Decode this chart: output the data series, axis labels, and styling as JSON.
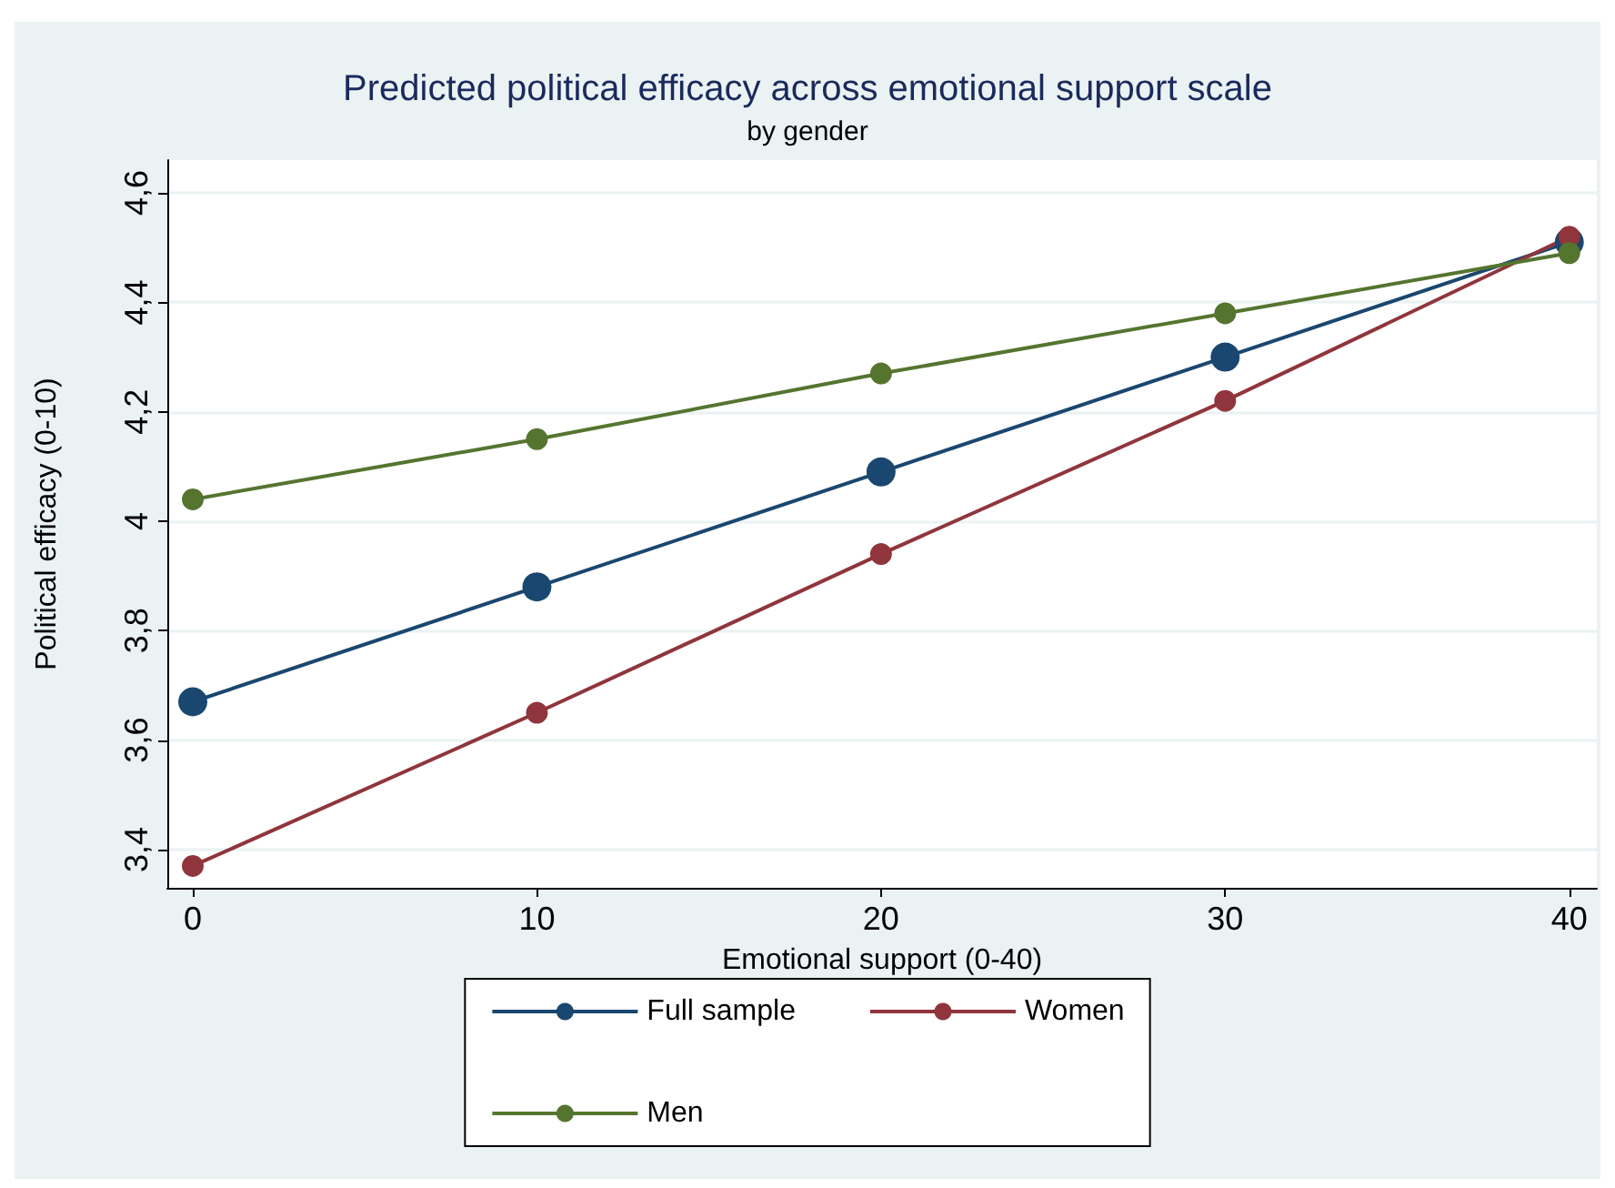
{
  "chart_data": {
    "type": "line",
    "title": "Predicted political efficacy across emotional support scale",
    "subtitle": "by gender",
    "xlabel": "Emotional support (0-40)",
    "ylabel": "Political efficacy (0-10)",
    "x": [
      0,
      10,
      20,
      30,
      40
    ],
    "series": [
      {
        "name": "Full sample",
        "color": "#1a476f",
        "values": [
          3.67,
          3.88,
          4.09,
          4.3,
          4.51
        ]
      },
      {
        "name": "Women",
        "color": "#90353b",
        "values": [
          3.37,
          3.65,
          3.94,
          4.22,
          4.52
        ]
      },
      {
        "name": "Men",
        "color": "#55752f",
        "values": [
          4.04,
          4.15,
          4.27,
          4.38,
          4.49
        ]
      }
    ],
    "xlim": [
      -0.74,
      40.8
    ],
    "xticks": [
      0,
      10,
      20,
      30,
      40
    ],
    "ylim": [
      3.33,
      4.66
    ],
    "yticks": [
      {
        "value": 3.4,
        "label": "3,4"
      },
      {
        "value": 3.6,
        "label": "3,6"
      },
      {
        "value": 3.8,
        "label": "3,8"
      },
      4,
      {
        "value": 4.2,
        "label": "4,2"
      },
      {
        "value": 4.4,
        "label": "4,4"
      },
      {
        "value": 4.6,
        "label": "4,6"
      }
    ],
    "grid": "y",
    "legend": "bottom",
    "marker": "circle",
    "line_style": "solid"
  }
}
